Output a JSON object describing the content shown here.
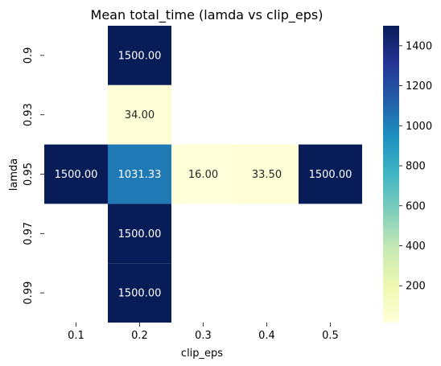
{
  "chart_data": {
    "type": "heatmap",
    "title": "Mean total_time (lamda vs clip_eps)",
    "xlabel": "clip_eps",
    "ylabel": "lamda",
    "x_categories": [
      "0.1",
      "0.2",
      "0.3",
      "0.4",
      "0.5"
    ],
    "y_categories": [
      "0.9",
      "0.93",
      "0.95",
      "0.97",
      "0.99"
    ],
    "values": [
      [
        null,
        1500.0,
        null,
        null,
        null
      ],
      [
        null,
        34.0,
        null,
        null,
        null
      ],
      [
        1500.0,
        1031.33,
        16.0,
        33.5,
        1500.0
      ],
      [
        null,
        1500.0,
        null,
        null,
        null
      ],
      [
        null,
        1500.0,
        null,
        null,
        null
      ]
    ],
    "value_labels": [
      [
        null,
        "1500.00",
        null,
        null,
        null
      ],
      [
        null,
        "34.00",
        null,
        null,
        null
      ],
      [
        "1500.00",
        "1031.33",
        "16.00",
        "33.50",
        "1500.00"
      ],
      [
        null,
        "1500.00",
        null,
        null,
        null
      ],
      [
        null,
        "1500.00",
        null,
        null,
        null
      ]
    ],
    "colorscale": "YlGnBu",
    "colorbar": {
      "range": [
        16,
        1500
      ],
      "ticks": [
        200,
        400,
        600,
        800,
        1000,
        1200,
        1400
      ]
    }
  }
}
